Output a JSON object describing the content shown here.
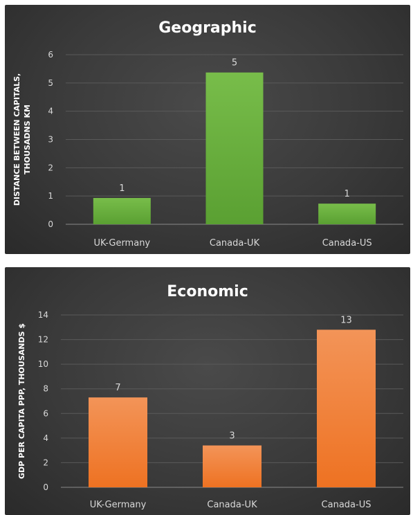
{
  "chart_data": [
    {
      "type": "bar",
      "title": "Geographic",
      "xlabel": "",
      "ylabel": "DISTANCE BETWEEN CAPITALS, THOUSADNS KM",
      "ylim": [
        0,
        6
      ],
      "yticks": [
        0,
        1,
        2,
        3,
        4,
        5,
        6
      ],
      "categories": [
        "UK-Germany",
        "Canada-UK",
        "Canada-US"
      ],
      "values": [
        0.93,
        5.37,
        0.73
      ],
      "data_labels": [
        "1",
        "5",
        "1"
      ],
      "grid": true,
      "color": "#6aaf3e"
    },
    {
      "type": "bar",
      "title": "Economic",
      "xlabel": "",
      "ylabel": "GDP PER CAPITA PPP, THOUSANDS $",
      "ylim": [
        0,
        14
      ],
      "yticks": [
        0,
        2,
        4,
        6,
        8,
        10,
        12,
        14
      ],
      "categories": [
        "UK-Germany",
        "Canada-UK",
        "Canada-US"
      ],
      "values": [
        7.3,
        3.4,
        12.8
      ],
      "data_labels": [
        "7",
        "3",
        "13"
      ],
      "grid": true,
      "color": "#f07f2e"
    }
  ]
}
